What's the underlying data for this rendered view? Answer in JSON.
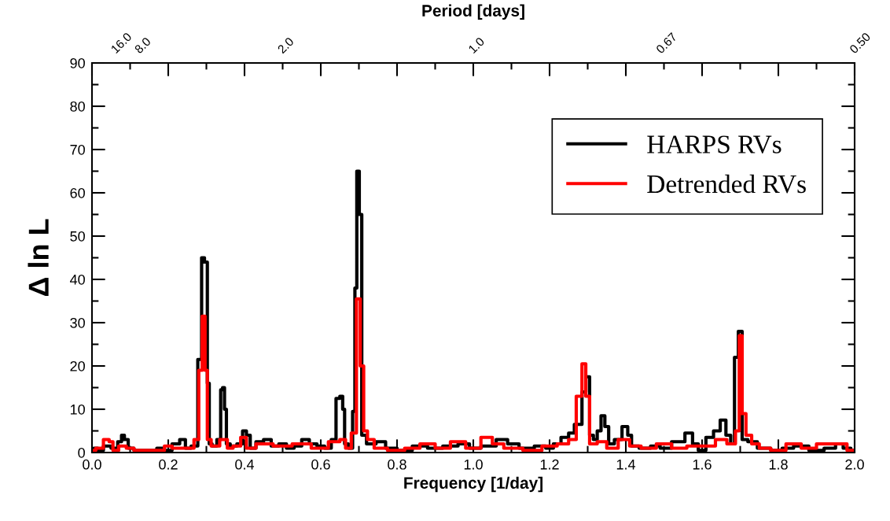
{
  "chart_data": {
    "type": "step",
    "xlabel": "Frequency [1/day]",
    "ylabel": "Δ ln L",
    "x2label": "Period [days]",
    "xlim": [
      0.0,
      2.0
    ],
    "xticks": [
      {
        "value": 0.0,
        "label": "0.0"
      },
      {
        "value": 0.2,
        "label": "0.2"
      },
      {
        "value": 0.4,
        "label": "0.4"
      },
      {
        "value": 0.6,
        "label": "0.6"
      },
      {
        "value": 0.8,
        "label": "0.8"
      },
      {
        "value": 1.0,
        "label": "1.0"
      },
      {
        "value": 1.2,
        "label": "1.2"
      },
      {
        "value": 1.4,
        "label": "1.4"
      },
      {
        "value": 1.6,
        "label": "1.6"
      },
      {
        "value": 1.8,
        "label": "1.8"
      },
      {
        "value": 2.0,
        "label": "2.0"
      }
    ],
    "annotations": [
      "16.0",
      "8.0",
      "2.0",
      "1.0",
      "0.67",
      "0.50"
    ],
    "ylim": [
      0,
      90
    ],
    "yticks": [
      0,
      10,
      20,
      30,
      40,
      50,
      60,
      70,
      80,
      90
    ],
    "grid": false,
    "legend": "top right",
    "line_style": "solid",
    "series": [
      {
        "name": "HARPS RVs",
        "color": "#000000",
        "x": [
          0.0,
          0.01,
          0.02,
          0.04,
          0.06,
          0.075,
          0.08,
          0.09,
          0.1,
          0.12,
          0.16,
          0.18,
          0.2,
          0.22,
          0.24,
          0.25,
          0.27,
          0.285,
          0.29,
          0.3,
          0.305,
          0.31,
          0.32,
          0.335,
          0.34,
          0.345,
          0.35,
          0.355,
          0.37,
          0.39,
          0.4,
          0.41,
          0.42,
          0.44,
          0.46,
          0.48,
          0.5,
          0.52,
          0.54,
          0.56,
          0.58,
          0.6,
          0.62,
          0.635,
          0.645,
          0.655,
          0.66,
          0.665,
          0.68,
          0.687,
          0.692,
          0.697,
          0.705,
          0.71,
          0.73,
          0.76,
          0.78,
          0.82,
          0.86,
          0.9,
          0.94,
          0.98,
          1.0,
          1.04,
          1.08,
          1.1,
          1.14,
          1.18,
          1.2,
          1.22,
          1.24,
          1.26,
          1.27,
          1.28,
          1.29,
          1.3,
          1.31,
          1.32,
          1.33,
          1.34,
          1.35,
          1.36,
          1.38,
          1.4,
          1.41,
          1.42,
          1.45,
          1.48,
          1.5,
          1.54,
          1.57,
          1.58,
          1.6,
          1.62,
          1.64,
          1.655,
          1.67,
          1.68,
          1.69,
          1.7,
          1.71,
          1.73,
          1.76,
          1.8,
          1.82,
          1.86,
          1.9,
          1.94,
          1.96,
          1.98,
          2.0
        ],
        "values": [
          0.5,
          1,
          0.5,
          1.5,
          1,
          2.5,
          4,
          3,
          1,
          0.5,
          0.5,
          1,
          0.5,
          2,
          3,
          1,
          1.5,
          21.5,
          45,
          44,
          16,
          2,
          1.5,
          3,
          14.5,
          15,
          10,
          2,
          1.5,
          2,
          5,
          4,
          1,
          2.5,
          3,
          1.5,
          2,
          1,
          1.5,
          3,
          2,
          1.5,
          1,
          3,
          12.5,
          13,
          10,
          2,
          1,
          9.5,
          38,
          65,
          55,
          4,
          2,
          2.5,
          1,
          0.5,
          1.5,
          1,
          1.5,
          2,
          1,
          1.5,
          3,
          2,
          1,
          1.5,
          1,
          2,
          3.5,
          4.5,
          6.5,
          6.5,
          14,
          17.5,
          4,
          3,
          5,
          8.5,
          6,
          2,
          3,
          6,
          4,
          1.5,
          1,
          1.5,
          1,
          2.5,
          4.5,
          2,
          0.5,
          3.5,
          5,
          7.5,
          4,
          2,
          22,
          28,
          3,
          2.5,
          1,
          0.5,
          1,
          1.5,
          0.5,
          1,
          2,
          1,
          0.5
        ]
      },
      {
        "name": "Detrended RVs",
        "color": "#ff0000",
        "x": [
          0.0,
          0.02,
          0.04,
          0.05,
          0.06,
          0.08,
          0.1,
          0.12,
          0.18,
          0.2,
          0.22,
          0.26,
          0.275,
          0.285,
          0.293,
          0.3,
          0.305,
          0.32,
          0.35,
          0.36,
          0.38,
          0.4,
          0.41,
          0.45,
          0.5,
          0.55,
          0.6,
          0.64,
          0.66,
          0.67,
          0.69,
          0.697,
          0.71,
          0.715,
          0.73,
          0.75,
          0.8,
          0.84,
          0.88,
          0.92,
          0.96,
          1.0,
          1.04,
          1.06,
          1.1,
          1.16,
          1.2,
          1.24,
          1.26,
          1.28,
          1.29,
          1.3,
          1.31,
          1.34,
          1.36,
          1.4,
          1.42,
          1.46,
          1.5,
          1.54,
          1.58,
          1.62,
          1.65,
          1.68,
          1.695,
          1.7,
          1.71,
          1.72,
          1.74,
          1.76,
          1.8,
          1.84,
          1.88,
          1.92,
          1.96,
          2.0
        ],
        "values": [
          0.5,
          1,
          3,
          2.5,
          0.5,
          1.5,
          1,
          0.5,
          0.5,
          1.5,
          1,
          1,
          3,
          19,
          31.5,
          19,
          3,
          1.5,
          3,
          1,
          1.5,
          3.5,
          1,
          2,
          1.5,
          2,
          1,
          2.5,
          3,
          1,
          4.5,
          35.5,
          20,
          5,
          3,
          1,
          0.5,
          1,
          2,
          1,
          2.5,
          1,
          3.5,
          2,
          1,
          0.5,
          1.5,
          2,
          3,
          13,
          20.5,
          13,
          2,
          2.5,
          1,
          3,
          1.5,
          1,
          2,
          1,
          1.5,
          1.5,
          3,
          2,
          5,
          27,
          9,
          4,
          2,
          1,
          0.5,
          2,
          1,
          2,
          2,
          0.5
        ]
      }
    ]
  }
}
